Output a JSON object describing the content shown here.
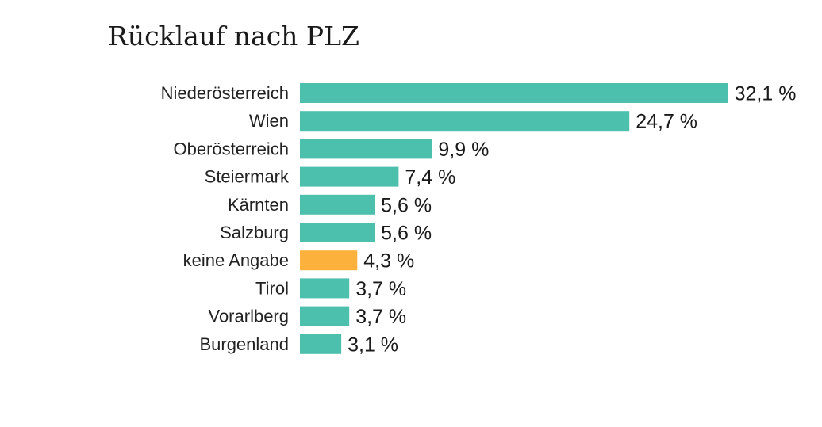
{
  "title": "Rücklauf nach PLZ",
  "colors": {
    "default": "#4cbfad",
    "highlight": "#fbb13c"
  },
  "chart_data": {
    "type": "bar",
    "orientation": "horizontal",
    "title": "Rücklauf nach PLZ",
    "xlabel": "",
    "ylabel": "",
    "unit": "%",
    "grid": false,
    "categories": [
      "Niederösterreich",
      "Wien",
      "Oberösterreich",
      "Steiermark",
      "Kärnten",
      "Salzburg",
      "keine Angabe",
      "Tirol",
      "Vorarlberg",
      "Burgenland"
    ],
    "values": [
      32.1,
      24.7,
      9.9,
      7.4,
      5.6,
      5.6,
      4.3,
      3.7,
      3.7,
      3.1
    ],
    "value_labels": [
      "32,1 %",
      "24,7 %",
      "9,9 %",
      "7,4 %",
      "5,6 %",
      "5,6 %",
      "4,3 %",
      "3,7 %",
      "3,7 %",
      "3,1 %"
    ],
    "highlight": "keine Angabe"
  }
}
